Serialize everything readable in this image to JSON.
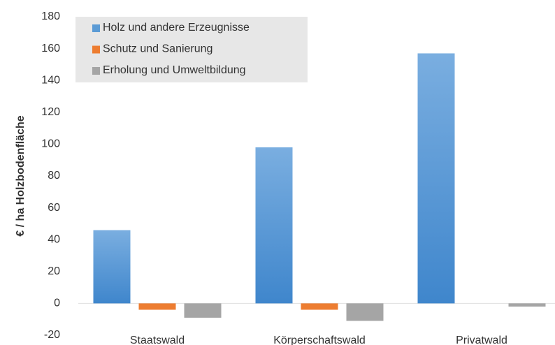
{
  "chart_data": {
    "type": "bar",
    "ylabel": "€ / ha Holzbodenfläche",
    "categories": [
      "Staatswald",
      "Körperschaftswald",
      "Privatwald"
    ],
    "series": [
      {
        "name": "Holz und andere Erzeugnisse",
        "color": "#5b9bd5",
        "values": [
          46,
          98,
          157
        ]
      },
      {
        "name": "Schutz und Sanierung",
        "color": "#ed7d31",
        "values": [
          -4,
          -4,
          0
        ]
      },
      {
        "name": "Erholung und Umweltbildung",
        "color": "#a5a5a5",
        "values": [
          -9,
          -11,
          -2
        ]
      }
    ],
    "ylim": [
      -20,
      180
    ],
    "yticks": [
      -20,
      0,
      20,
      40,
      60,
      80,
      100,
      120,
      140,
      160,
      180
    ],
    "grid": false,
    "legend": "upper left"
  }
}
